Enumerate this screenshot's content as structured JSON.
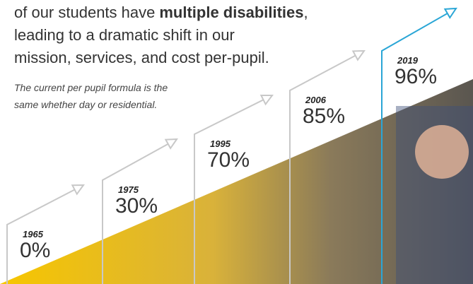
{
  "heading": {
    "line1": [
      "of our students have",
      "multiple disabilities",
      ","
    ],
    "line2": "leading to a dramatic shift in our",
    "line3": "mission, services, and cost per-pupil."
  },
  "note": {
    "line1": "The current per pupil formula is the",
    "line2": "same whether day or residential."
  },
  "milestones": [
    {
      "year": "1965",
      "percent": "0%"
    },
    {
      "year": "1975",
      "percent": "30%"
    },
    {
      "year": "1995",
      "percent": "70%"
    },
    {
      "year": "2006",
      "percent": "85%"
    },
    {
      "year": "2019",
      "percent": "96%"
    }
  ]
}
